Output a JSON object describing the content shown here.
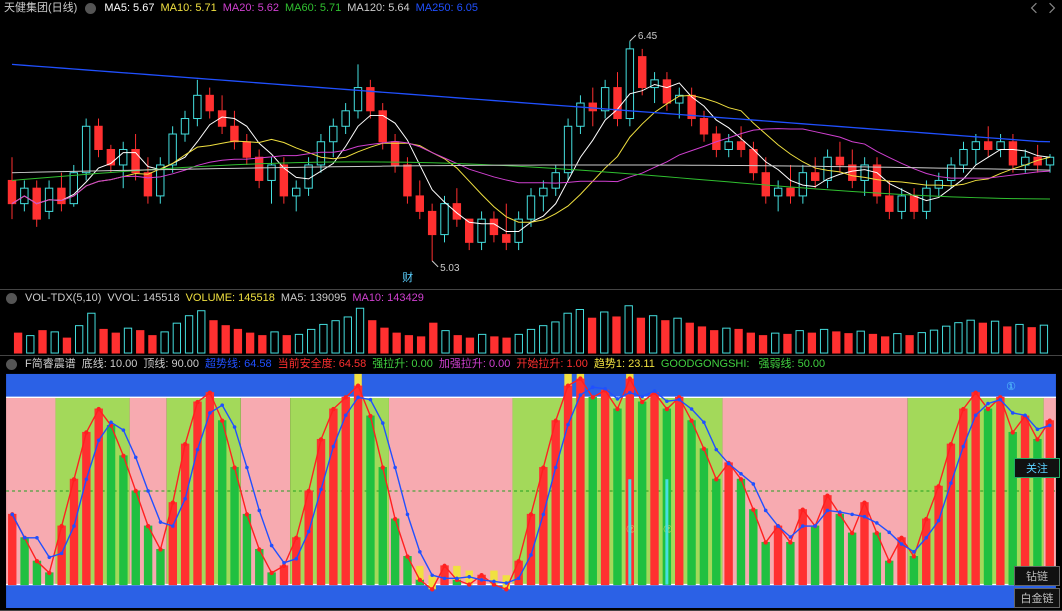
{
  "price_panel": {
    "title": "天健集团(日线)",
    "ma_labels": [
      {
        "text": "MA5:",
        "value": "5.67",
        "color": "#ffffff"
      },
      {
        "text": "MA10:",
        "value": "5.71",
        "color": "#f0e040"
      },
      {
        "text": "MA20:",
        "value": "5.62",
        "color": "#d040d0"
      },
      {
        "text": "MA60:",
        "value": "5.71",
        "color": "#30c030"
      },
      {
        "text": "MA120:",
        "value": "5.64",
        "color": "#cccccc"
      },
      {
        "text": "MA250:",
        "value": "6.05",
        "color": "#2050ff"
      }
    ],
    "annotations": {
      "hi": "6.45",
      "lo": "5.03",
      "fin": "财"
    },
    "ylim": [
      4.9,
      6.6
    ],
    "candles": [
      {
        "o": 5.55,
        "h": 5.7,
        "l": 5.3,
        "c": 5.4,
        "up": false
      },
      {
        "o": 5.4,
        "h": 5.55,
        "l": 5.35,
        "c": 5.5,
        "up": true
      },
      {
        "o": 5.5,
        "h": 5.55,
        "l": 5.25,
        "c": 5.3,
        "up": false
      },
      {
        "o": 5.35,
        "h": 5.55,
        "l": 5.3,
        "c": 5.5,
        "up": true
      },
      {
        "o": 5.5,
        "h": 5.6,
        "l": 5.35,
        "c": 5.4,
        "up": false
      },
      {
        "o": 5.4,
        "h": 5.65,
        "l": 5.38,
        "c": 5.6,
        "up": true
      },
      {
        "o": 5.6,
        "h": 5.95,
        "l": 5.55,
        "c": 5.9,
        "up": true
      },
      {
        "o": 5.9,
        "h": 5.95,
        "l": 5.7,
        "c": 5.75,
        "up": false
      },
      {
        "o": 5.75,
        "h": 5.78,
        "l": 5.6,
        "c": 5.65,
        "up": false
      },
      {
        "o": 5.65,
        "h": 5.8,
        "l": 5.5,
        "c": 5.75,
        "up": true
      },
      {
        "o": 5.75,
        "h": 5.85,
        "l": 5.55,
        "c": 5.6,
        "up": false
      },
      {
        "o": 5.6,
        "h": 5.7,
        "l": 5.4,
        "c": 5.45,
        "up": false
      },
      {
        "o": 5.45,
        "h": 5.7,
        "l": 5.4,
        "c": 5.65,
        "up": true
      },
      {
        "o": 5.65,
        "h": 5.9,
        "l": 5.6,
        "c": 5.85,
        "up": true
      },
      {
        "o": 5.85,
        "h": 6.0,
        "l": 5.8,
        "c": 5.95,
        "up": true
      },
      {
        "o": 5.95,
        "h": 6.2,
        "l": 5.9,
        "c": 6.1,
        "up": true
      },
      {
        "o": 6.1,
        "h": 6.15,
        "l": 5.95,
        "c": 6.0,
        "up": false
      },
      {
        "o": 6.0,
        "h": 6.1,
        "l": 5.85,
        "c": 5.9,
        "up": false
      },
      {
        "o": 5.9,
        "h": 6.0,
        "l": 5.75,
        "c": 5.8,
        "up": false
      },
      {
        "o": 5.8,
        "h": 5.85,
        "l": 5.65,
        "c": 5.7,
        "up": false
      },
      {
        "o": 5.7,
        "h": 5.75,
        "l": 5.5,
        "c": 5.55,
        "up": false
      },
      {
        "o": 5.55,
        "h": 5.7,
        "l": 5.4,
        "c": 5.65,
        "up": true
      },
      {
        "o": 5.65,
        "h": 5.7,
        "l": 5.4,
        "c": 5.45,
        "up": false
      },
      {
        "o": 5.45,
        "h": 5.55,
        "l": 5.35,
        "c": 5.5,
        "up": true
      },
      {
        "o": 5.5,
        "h": 5.7,
        "l": 5.45,
        "c": 5.65,
        "up": true
      },
      {
        "o": 5.65,
        "h": 5.85,
        "l": 5.6,
        "c": 5.8,
        "up": true
      },
      {
        "o": 5.8,
        "h": 5.95,
        "l": 5.7,
        "c": 5.9,
        "up": true
      },
      {
        "o": 5.9,
        "h": 6.05,
        "l": 5.85,
        "c": 6.0,
        "up": true
      },
      {
        "o": 6.0,
        "h": 6.3,
        "l": 5.95,
        "c": 6.15,
        "up": true
      },
      {
        "o": 6.15,
        "h": 6.2,
        "l": 5.95,
        "c": 6.0,
        "up": false
      },
      {
        "o": 6.0,
        "h": 6.05,
        "l": 5.75,
        "c": 5.8,
        "up": false
      },
      {
        "o": 5.8,
        "h": 5.85,
        "l": 5.6,
        "c": 5.65,
        "up": false
      },
      {
        "o": 5.65,
        "h": 5.7,
        "l": 5.4,
        "c": 5.45,
        "up": false
      },
      {
        "o": 5.45,
        "h": 5.55,
        "l": 5.3,
        "c": 5.35,
        "up": false
      },
      {
        "o": 5.35,
        "h": 5.4,
        "l": 5.03,
        "c": 5.2,
        "up": false
      },
      {
        "o": 5.2,
        "h": 5.45,
        "l": 5.15,
        "c": 5.4,
        "up": true
      },
      {
        "o": 5.4,
        "h": 5.5,
        "l": 5.25,
        "c": 5.3,
        "up": false
      },
      {
        "o": 5.3,
        "h": 5.3,
        "l": 5.1,
        "c": 5.15,
        "up": false
      },
      {
        "o": 5.15,
        "h": 5.35,
        "l": 5.1,
        "c": 5.3,
        "up": true
      },
      {
        "o": 5.3,
        "h": 5.35,
        "l": 5.15,
        "c": 5.2,
        "up": false
      },
      {
        "o": 5.2,
        "h": 5.4,
        "l": 5.1,
        "c": 5.15,
        "up": false
      },
      {
        "o": 5.15,
        "h": 5.35,
        "l": 5.1,
        "c": 5.3,
        "up": true
      },
      {
        "o": 5.3,
        "h": 5.5,
        "l": 5.25,
        "c": 5.45,
        "up": true
      },
      {
        "o": 5.45,
        "h": 5.55,
        "l": 5.35,
        "c": 5.5,
        "up": true
      },
      {
        "o": 5.5,
        "h": 5.65,
        "l": 5.45,
        "c": 5.6,
        "up": true
      },
      {
        "o": 5.6,
        "h": 5.95,
        "l": 5.55,
        "c": 5.9,
        "up": true
      },
      {
        "o": 5.9,
        "h": 6.1,
        "l": 5.85,
        "c": 6.05,
        "up": true
      },
      {
        "o": 6.05,
        "h": 6.15,
        "l": 5.9,
        "c": 6.0,
        "up": false
      },
      {
        "o": 6.0,
        "h": 6.2,
        "l": 5.95,
        "c": 6.15,
        "up": true
      },
      {
        "o": 6.15,
        "h": 6.25,
        "l": 5.9,
        "c": 5.95,
        "up": false
      },
      {
        "o": 5.95,
        "h": 6.45,
        "l": 5.9,
        "c": 6.4,
        "up": true
      },
      {
        "o": 6.35,
        "h": 6.4,
        "l": 6.1,
        "c": 6.15,
        "up": false
      },
      {
        "o": 6.15,
        "h": 6.25,
        "l": 6.05,
        "c": 6.2,
        "up": true
      },
      {
        "o": 6.2,
        "h": 6.25,
        "l": 6.0,
        "c": 6.05,
        "up": false
      },
      {
        "o": 6.05,
        "h": 6.15,
        "l": 5.95,
        "c": 6.1,
        "up": true
      },
      {
        "o": 6.1,
        "h": 6.15,
        "l": 5.9,
        "c": 5.95,
        "up": false
      },
      {
        "o": 5.95,
        "h": 6.0,
        "l": 5.8,
        "c": 5.85,
        "up": false
      },
      {
        "o": 5.85,
        "h": 5.9,
        "l": 5.7,
        "c": 5.75,
        "up": false
      },
      {
        "o": 5.75,
        "h": 5.85,
        "l": 5.7,
        "c": 5.8,
        "up": true
      },
      {
        "o": 5.8,
        "h": 5.9,
        "l": 5.7,
        "c": 5.75,
        "up": false
      },
      {
        "o": 5.75,
        "h": 5.8,
        "l": 5.55,
        "c": 5.6,
        "up": false
      },
      {
        "o": 5.6,
        "h": 5.7,
        "l": 5.4,
        "c": 5.45,
        "up": false
      },
      {
        "o": 5.45,
        "h": 5.55,
        "l": 5.35,
        "c": 5.5,
        "up": true
      },
      {
        "o": 5.5,
        "h": 5.65,
        "l": 5.4,
        "c": 5.45,
        "up": false
      },
      {
        "o": 5.45,
        "h": 5.65,
        "l": 5.4,
        "c": 5.6,
        "up": true
      },
      {
        "o": 5.6,
        "h": 5.7,
        "l": 5.5,
        "c": 5.55,
        "up": false
      },
      {
        "o": 5.55,
        "h": 5.75,
        "l": 5.5,
        "c": 5.7,
        "up": true
      },
      {
        "o": 5.7,
        "h": 5.8,
        "l": 5.6,
        "c": 5.65,
        "up": false
      },
      {
        "o": 5.65,
        "h": 5.75,
        "l": 5.5,
        "c": 5.55,
        "up": false
      },
      {
        "o": 5.55,
        "h": 5.7,
        "l": 5.45,
        "c": 5.65,
        "up": true
      },
      {
        "o": 5.65,
        "h": 5.7,
        "l": 5.4,
        "c": 5.45,
        "up": false
      },
      {
        "o": 5.45,
        "h": 5.55,
        "l": 5.3,
        "c": 5.35,
        "up": false
      },
      {
        "o": 5.35,
        "h": 5.5,
        "l": 5.3,
        "c": 5.45,
        "up": true
      },
      {
        "o": 5.45,
        "h": 5.5,
        "l": 5.3,
        "c": 5.35,
        "up": false
      },
      {
        "o": 5.35,
        "h": 5.55,
        "l": 5.3,
        "c": 5.5,
        "up": true
      },
      {
        "o": 5.5,
        "h": 5.6,
        "l": 5.45,
        "c": 5.55,
        "up": true
      },
      {
        "o": 5.55,
        "h": 5.7,
        "l": 5.5,
        "c": 5.65,
        "up": true
      },
      {
        "o": 5.65,
        "h": 5.8,
        "l": 5.6,
        "c": 5.75,
        "up": true
      },
      {
        "o": 5.75,
        "h": 5.85,
        "l": 5.65,
        "c": 5.8,
        "up": true
      },
      {
        "o": 5.8,
        "h": 5.9,
        "l": 5.7,
        "c": 5.75,
        "up": false
      },
      {
        "o": 5.75,
        "h": 5.85,
        "l": 5.7,
        "c": 5.8,
        "up": true
      },
      {
        "o": 5.8,
        "h": 5.85,
        "l": 5.6,
        "c": 5.65,
        "up": false
      },
      {
        "o": 5.65,
        "h": 5.75,
        "l": 5.6,
        "c": 5.7,
        "up": true
      },
      {
        "o": 5.7,
        "h": 5.78,
        "l": 5.6,
        "c": 5.65,
        "up": false
      },
      {
        "o": 5.65,
        "h": 5.72,
        "l": 5.6,
        "c": 5.7,
        "up": true
      }
    ],
    "ma5_color": "#ffffff",
    "ma10_color": "#f0e040",
    "ma20_color": "#d040d0",
    "ma60_color": "#30c030",
    "ma120_color": "#cccccc",
    "ma250_color": "#2050ff"
  },
  "vol_panel": {
    "label": "VOL-TDX(5,10)",
    "items": [
      {
        "text": "VVOL:",
        "value": "145518",
        "color": "#cccccc"
      },
      {
        "text": "VOLUME:",
        "value": "145518",
        "color": "#f0e040"
      },
      {
        "text": "MA5:",
        "value": "139095",
        "color": "#cccccc"
      },
      {
        "text": "MA10:",
        "value": "143429",
        "color": "#d040d0"
      }
    ],
    "ymax": 200000,
    "bars": [
      80,
      70,
      90,
      85,
      60,
      110,
      160,
      95,
      80,
      100,
      90,
      70,
      85,
      120,
      150,
      170,
      130,
      110,
      95,
      80,
      70,
      85,
      70,
      75,
      95,
      115,
      130,
      145,
      180,
      130,
      100,
      80,
      70,
      65,
      120,
      90,
      70,
      60,
      75,
      65,
      60,
      75,
      95,
      110,
      125,
      160,
      175,
      140,
      165,
      145,
      190,
      140,
      150,
      130,
      140,
      120,
      105,
      90,
      100,
      95,
      80,
      70,
      80,
      75,
      90,
      80,
      95,
      85,
      78,
      88,
      75,
      65,
      78,
      70,
      82,
      92,
      108,
      122,
      132,
      120,
      128,
      105,
      115,
      102,
      112
    ]
  },
  "ind_panel": {
    "label": "F简睿震谱",
    "items": [
      {
        "text": "底线:",
        "value": "10.00",
        "color": "#cccccc"
      },
      {
        "text": "顶线:",
        "value": "90.00",
        "color": "#cccccc"
      },
      {
        "text": "超势线:",
        "value": "64.58",
        "color": "#2050ff"
      },
      {
        "text": "当前安全度:",
        "value": "64.58",
        "color": "#ff3030"
      },
      {
        "text": "强拉升:",
        "value": "0.00",
        "color": "#40d040"
      },
      {
        "text": "加强拉升:",
        "value": "0.00",
        "color": "#d040d0"
      },
      {
        "text": "开始拉升:",
        "value": "1.00",
        "color": "#ff3030"
      },
      {
        "text": "趋势1:",
        "value": "23.11",
        "color": "#f0e040"
      },
      {
        "text": "GOODGONGSHI:",
        "value": "",
        "color": "#40d040"
      },
      {
        "text": "强弱线:",
        "value": "50.00",
        "color": "#40d040"
      }
    ],
    "ylim": [
      0,
      100
    ],
    "top_line": 90,
    "bot_line": 10,
    "mid_line": 50,
    "series": [
      40,
      30,
      20,
      15,
      35,
      55,
      75,
      85,
      78,
      65,
      50,
      35,
      25,
      45,
      70,
      88,
      92,
      80,
      60,
      40,
      25,
      15,
      18,
      30,
      50,
      72,
      85,
      90,
      95,
      82,
      60,
      38,
      22,
      12,
      8,
      18,
      12,
      10,
      14,
      10,
      8,
      20,
      40,
      60,
      80,
      95,
      98,
      90,
      93,
      85,
      98,
      88,
      92,
      85,
      90,
      80,
      68,
      55,
      62,
      55,
      42,
      28,
      35,
      28,
      42,
      35,
      48,
      40,
      32,
      45,
      32,
      20,
      30,
      22,
      38,
      52,
      70,
      85,
      92,
      85,
      90,
      75,
      82,
      72,
      80
    ],
    "bands_green": [
      [
        4,
        10
      ],
      [
        13,
        19
      ],
      [
        23,
        31
      ],
      [
        41,
        58
      ],
      [
        73,
        84
      ]
    ],
    "bands_pink": [
      [
        0,
        4
      ],
      [
        10,
        13
      ],
      [
        19,
        23
      ],
      [
        31,
        41
      ],
      [
        58,
        73
      ],
      [
        84,
        85
      ]
    ],
    "circled": "①",
    "btn_top": "关注",
    "btn1": "钻链",
    "btn2": "白金链"
  },
  "colors": {
    "bg": "#000000",
    "candle_up": "#45e0e0",
    "candle_dn": "#ff3030",
    "pink": "#f7aab0",
    "green": "#a3d95a",
    "blue_band": "#2b61e6",
    "red_line": "#ff2020",
    "blue_line": "#2050ff",
    "white": "#ffffff",
    "yellow": "#f0e040"
  }
}
